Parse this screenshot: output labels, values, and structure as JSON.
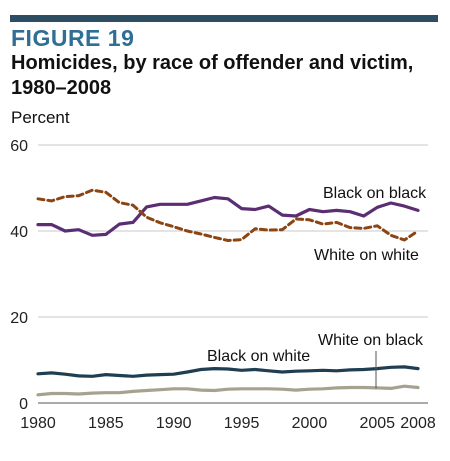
{
  "figure": {
    "label": "FIGURE 19",
    "title_line1": "Homicides, by race of offender and victim,",
    "title_line2": "1980–2008"
  },
  "chart_data": {
    "type": "line",
    "ylabel": "Percent",
    "xlabel": "",
    "ylim": [
      0,
      60
    ],
    "yticks": [
      0,
      20,
      40,
      60
    ],
    "xticks": [
      1980,
      1985,
      1990,
      1995,
      2000,
      2005,
      2008
    ],
    "grid": "horizontal",
    "x": [
      1980,
      1981,
      1982,
      1983,
      1984,
      1985,
      1986,
      1987,
      1988,
      1989,
      1990,
      1991,
      1992,
      1993,
      1994,
      1995,
      1996,
      1997,
      1998,
      1999,
      2000,
      2001,
      2002,
      2003,
      2004,
      2005,
      2006,
      2007,
      2008
    ],
    "series": [
      {
        "name": "Black on black",
        "color": "#5b2d73",
        "style": "solid",
        "values": [
          41.5,
          41.5,
          40.0,
          40.3,
          39.0,
          39.2,
          41.6,
          42.0,
          45.6,
          46.2,
          46.2,
          46.2,
          47.0,
          47.8,
          47.5,
          45.2,
          45.0,
          45.8,
          43.7,
          43.5,
          45.0,
          44.5,
          44.8,
          44.5,
          43.5,
          45.5,
          46.5,
          45.8,
          44.8
        ]
      },
      {
        "name": "White on white",
        "color": "#8b4513",
        "style": "dashed",
        "values": [
          47.5,
          47.0,
          48.0,
          48.2,
          49.5,
          49.0,
          46.6,
          46.0,
          43.2,
          41.9,
          41.0,
          40.0,
          39.3,
          38.5,
          37.8,
          38.0,
          40.5,
          40.2,
          40.3,
          42.8,
          42.6,
          41.6,
          42.0,
          40.8,
          40.6,
          41.2,
          39.0,
          37.9,
          40.0
        ]
      },
      {
        "name": "Black on white",
        "color": "#1f3e52",
        "style": "solid",
        "values": [
          6.8,
          7.0,
          6.7,
          6.3,
          6.2,
          6.6,
          6.4,
          6.2,
          6.5,
          6.6,
          6.7,
          7.2,
          7.8,
          8.0,
          7.9,
          7.6,
          7.8,
          7.5,
          7.2,
          7.4,
          7.5,
          7.6,
          7.5,
          7.7,
          7.8,
          8.0,
          8.3,
          8.4,
          8.0
        ]
      },
      {
        "name": "White on black",
        "color": "#a7a290",
        "style": "solid",
        "values": [
          1.9,
          2.2,
          2.2,
          2.1,
          2.3,
          2.4,
          2.4,
          2.7,
          2.9,
          3.1,
          3.3,
          3.3,
          3.0,
          2.9,
          3.2,
          3.3,
          3.3,
          3.3,
          3.2,
          3.0,
          3.2,
          3.3,
          3.5,
          3.6,
          3.6,
          3.5,
          3.4,
          3.9,
          3.6
        ]
      }
    ],
    "annotations": [
      {
        "text": "Black on black",
        "series": "Black on black"
      },
      {
        "text": "White on white",
        "series": "White on white"
      },
      {
        "text": "Black on white",
        "series": "Black on white"
      },
      {
        "text": "White on black",
        "series": "White on black"
      }
    ]
  }
}
